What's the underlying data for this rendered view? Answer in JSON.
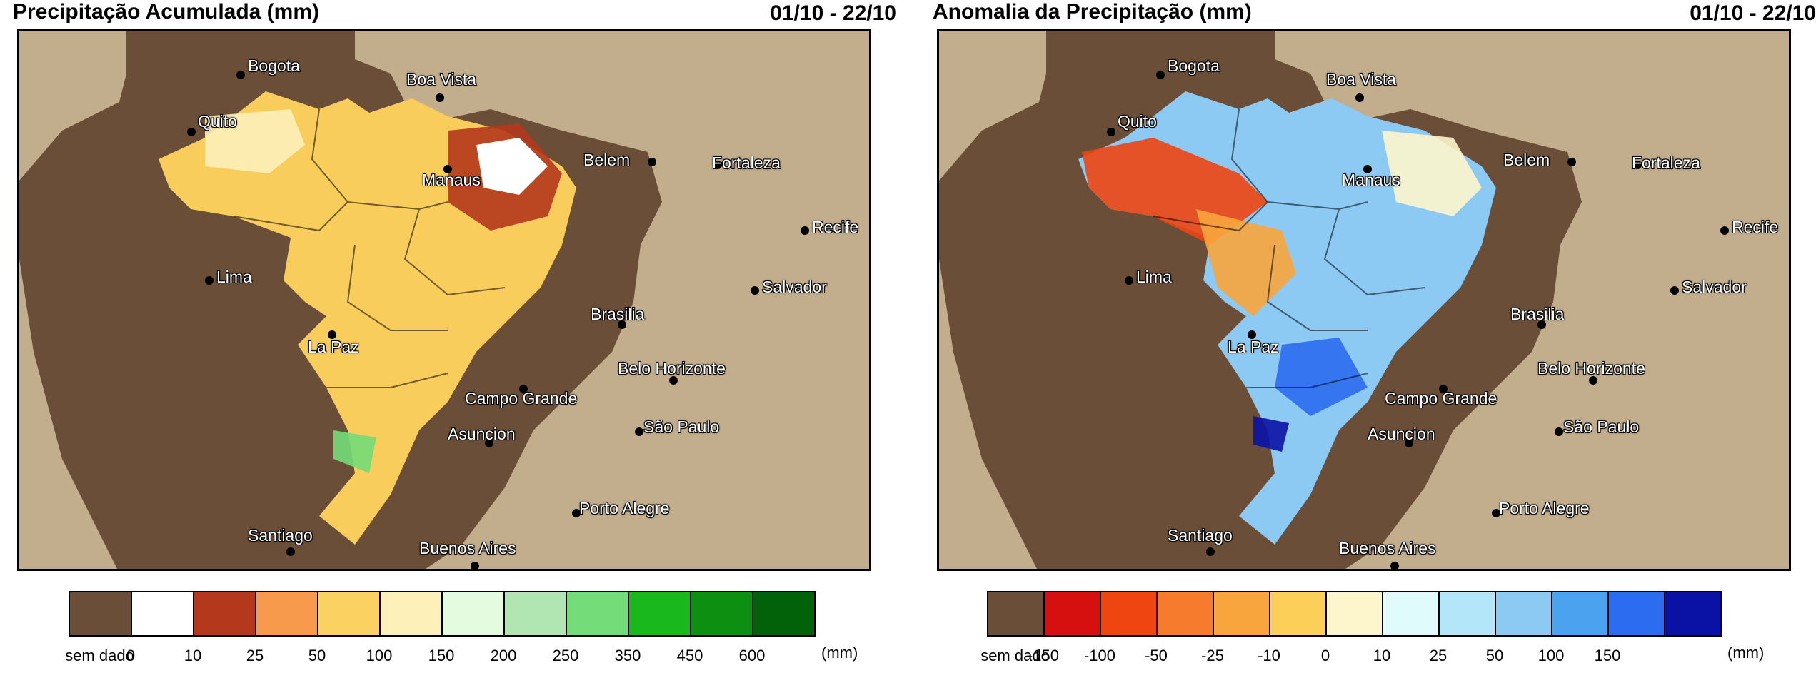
{
  "panels": [
    {
      "title": "Precipitação Acumulada (mm)",
      "date": "01/10 - 22/10",
      "legend": {
        "colors": [
          "#6a4e37",
          "#ffffff",
          "#b4381c",
          "#f79a4c",
          "#fbd162",
          "#fdf0b8",
          "#e4fbe0",
          "#b1e6b3",
          "#74dc78",
          "#19b81c",
          "#0d9012",
          "#02620a"
        ],
        "labels": [
          "sem dado",
          "0",
          "10",
          "25",
          "50",
          "100",
          "150",
          "200",
          "250",
          "350",
          "450",
          "600"
        ],
        "unit": "(mm)"
      }
    },
    {
      "title": "Anomalia da Precipitação (mm)",
      "date": "01/10 - 22/10",
      "legend": {
        "colors": [
          "#6a4e37",
          "#d60f0f",
          "#ee4511",
          "#f77b2c",
          "#f8a53d",
          "#fccf59",
          "#fdf6cc",
          "#e0fbfc",
          "#b2e6f8",
          "#8ccaf4",
          "#4ba2ef",
          "#2b6cf0",
          "#0a12a6"
        ],
        "labels": [
          "sem dado",
          "-150",
          "-100",
          "-50",
          "-25",
          "-10",
          "0",
          "10",
          "25",
          "50",
          "100",
          "150"
        ],
        "unit": "(mm)"
      }
    }
  ],
  "cities": [
    "Bogota",
    "Boa Vista",
    "Quito",
    "Manaus",
    "Belem",
    "Fortaleza",
    "Recife",
    "Lima",
    "Salvador",
    "Brasilia",
    "La Paz",
    "Belo Horizonte",
    "Campo Grande",
    "Asuncion",
    "São Paulo",
    "Porto Alegre",
    "Santiago",
    "Buenos Aires"
  ],
  "colors": {
    "land": "#6a4e37",
    "ocean": "#c2ae8d",
    "border": "#000000"
  }
}
